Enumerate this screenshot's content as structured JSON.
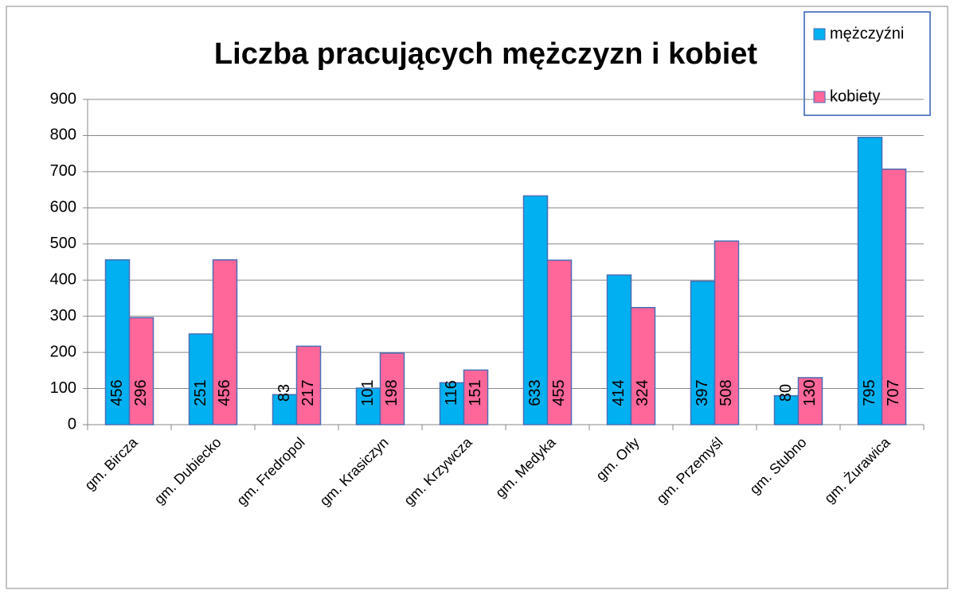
{
  "chart_data": {
    "type": "bar",
    "title": "Liczba pracujących mężczyzn i kobiet",
    "categories": [
      "gm. Bircza",
      "gm. Dubiecko",
      "gm. Fredropol",
      "gm. Krasiczyn",
      "gm. Krzywcza",
      "gm. Medyka",
      "gm. Orły",
      "gm. Przemyśl",
      "gm. Stubno",
      "gm. Żurawica"
    ],
    "series": [
      {
        "name": "mężczyźni",
        "color": "#00b0f0",
        "values": [
          456,
          251,
          83,
          101,
          116,
          633,
          414,
          397,
          80,
          795
        ]
      },
      {
        "name": "kobiety",
        "color": "#ff6699",
        "values": [
          296,
          456,
          217,
          198,
          151,
          455,
          324,
          508,
          130,
          707
        ]
      }
    ],
    "ylim": [
      0,
      900
    ],
    "yticks": [
      0,
      100,
      200,
      300,
      400,
      500,
      600,
      700,
      800,
      900
    ],
    "grid": true,
    "legend": "top-right"
  }
}
